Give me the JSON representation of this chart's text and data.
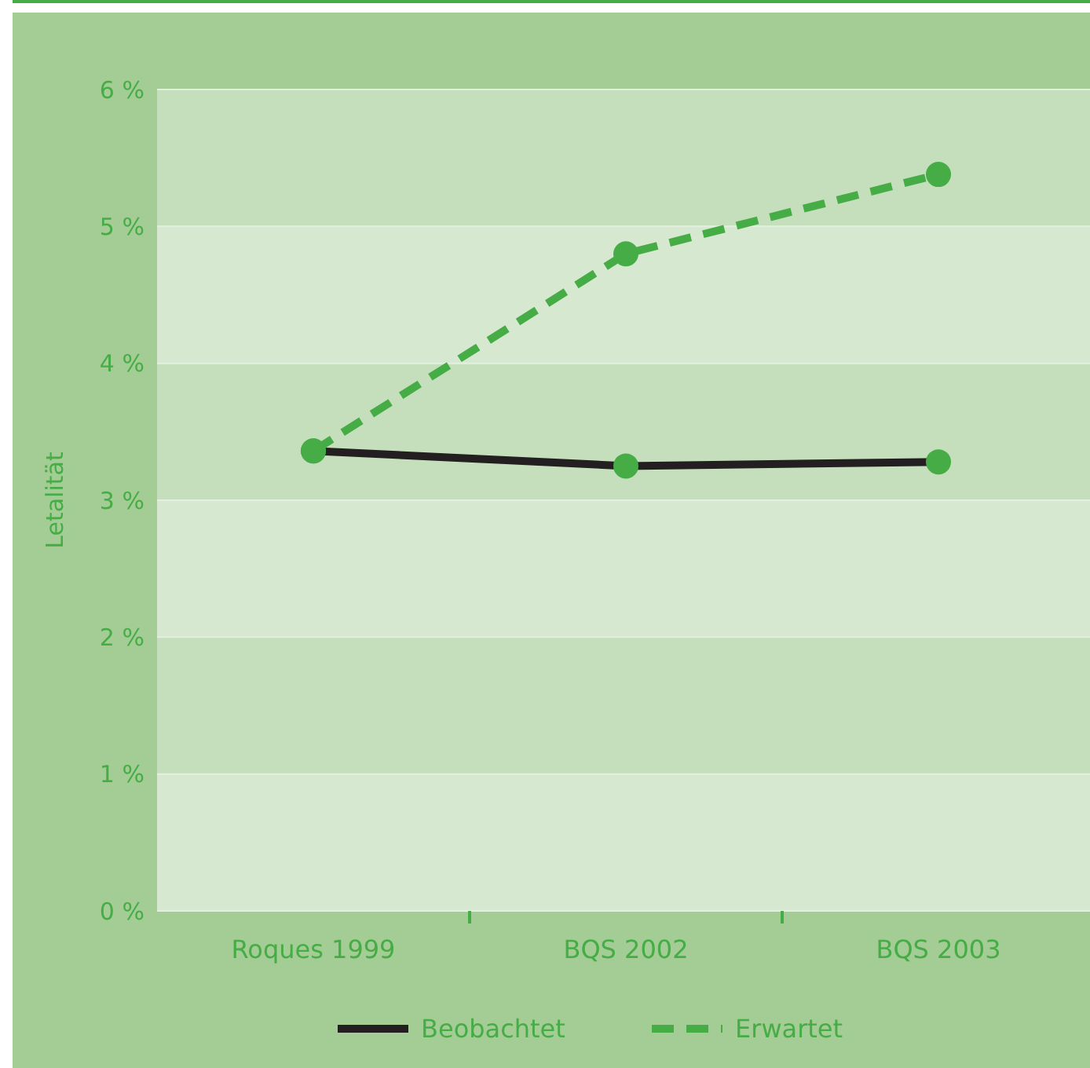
{
  "chart_data": {
    "type": "line",
    "ylabel": "Letalität",
    "categories": [
      "Roques 1999",
      "BQS 2002",
      "BQS 2003"
    ],
    "series": [
      {
        "name": "Beobachtet",
        "color": "#231f20",
        "line_style": "solid",
        "values": [
          3.36,
          3.25,
          3.28
        ]
      },
      {
        "name": "Erwartet",
        "color": "#46ac46",
        "line_style": "dashed",
        "values": [
          3.36,
          4.8,
          5.38
        ]
      }
    ],
    "ylim": [
      0,
      6
    ],
    "yticks": [
      {
        "value": 0,
        "label": "0 %"
      },
      {
        "value": 1,
        "label": "1 %"
      },
      {
        "value": 2,
        "label": "2 %"
      },
      {
        "value": 3,
        "label": "3 %"
      },
      {
        "value": 4,
        "label": "4 %"
      },
      {
        "value": 5,
        "label": "5 %"
      },
      {
        "value": 6,
        "label": "6 %"
      }
    ],
    "grid": "y",
    "legend": "bottom",
    "marker": "circle"
  }
}
